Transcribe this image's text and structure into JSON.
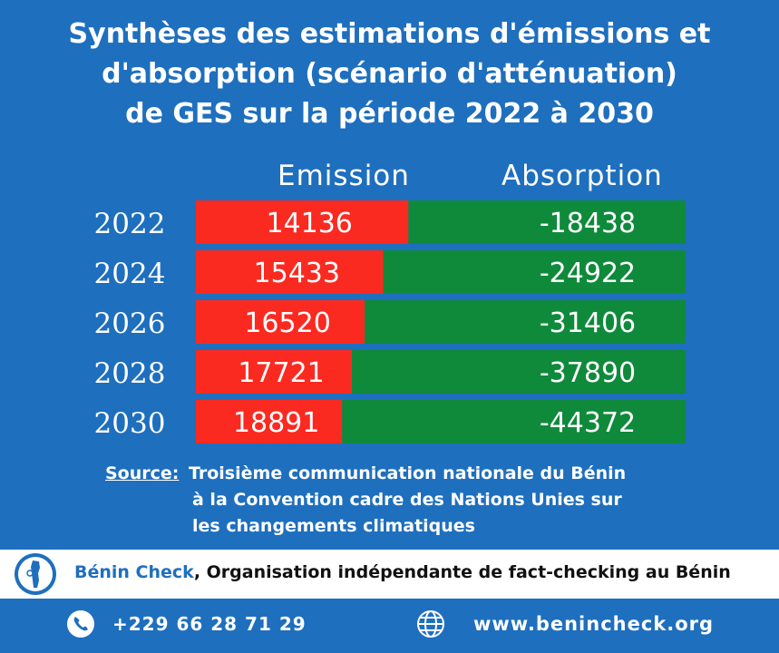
{
  "title": {
    "line1": "Synthèses des estimations d'émissions et",
    "line2": "d'absorption (scénario d'atténuation)",
    "line3": "de GES sur la période 2022 à 2030"
  },
  "chart_data": {
    "type": "bar",
    "orientation": "horizontal",
    "stacked": true,
    "categories": [
      "2022",
      "2024",
      "2026",
      "2028",
      "2030"
    ],
    "series": [
      {
        "name": "Emission",
        "color": "#fb2a21",
        "values": [
          14136,
          15433,
          16520,
          17721,
          18891
        ]
      },
      {
        "name": "Absorption",
        "color": "#0f8a3b",
        "values": [
          -18438,
          -24922,
          -31406,
          -37890,
          -44372
        ]
      }
    ],
    "value_labels": {
      "emission": [
        "14136",
        "15433",
        "16520",
        "17721",
        "18891"
      ],
      "absorption": [
        "-18438",
        "-24922",
        "-31406",
        "-37890",
        "-44372"
      ]
    },
    "grid": false,
    "legend": "top"
  },
  "source": {
    "label": "Source:",
    "line1": "Troisième communication nationale du Bénin",
    "line2": "à la Convention cadre des Nations Unies sur",
    "line3": "les changements climatiques"
  },
  "banner": {
    "brand": "Bénin Check",
    "tagline": ", Organisation indépendante de fact-checking au Bénin"
  },
  "footer": {
    "phone": "+229 66 28 71 29",
    "website": "www.benincheck.org"
  },
  "icons": [
    "benin-map-logo-icon",
    "phone-icon",
    "globe-icon"
  ],
  "colors": {
    "background": "#1e6fbe",
    "emission": "#fb2a21",
    "absorption": "#0f8a3b"
  }
}
